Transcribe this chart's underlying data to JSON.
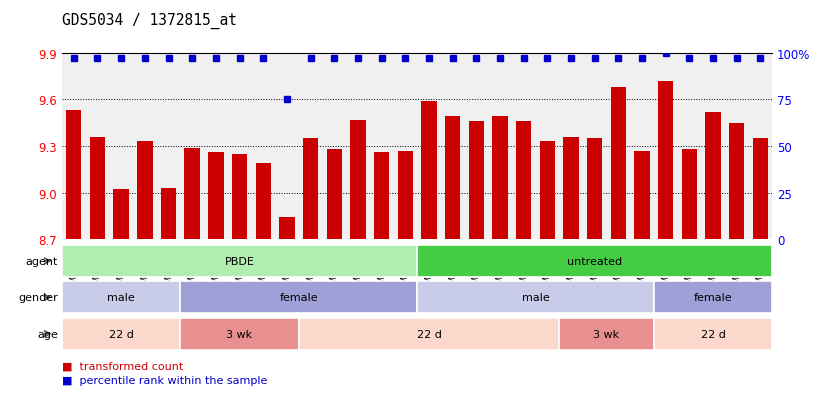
{
  "title": "GDS5034 / 1372815_at",
  "samples": [
    "GSM796783",
    "GSM796784",
    "GSM796785",
    "GSM796786",
    "GSM796787",
    "GSM796806",
    "GSM796807",
    "GSM796808",
    "GSM796809",
    "GSM796810",
    "GSM796796",
    "GSM796797",
    "GSM796798",
    "GSM796799",
    "GSM796800",
    "GSM796781",
    "GSM796788",
    "GSM796789",
    "GSM796790",
    "GSM796791",
    "GSM796801",
    "GSM796802",
    "GSM796803",
    "GSM796804",
    "GSM796805",
    "GSM796782",
    "GSM796792",
    "GSM796793",
    "GSM796794",
    "GSM796795"
  ],
  "bar_values": [
    9.53,
    9.36,
    9.02,
    9.33,
    9.03,
    9.29,
    9.26,
    9.25,
    9.19,
    8.84,
    9.35,
    9.28,
    9.47,
    9.26,
    9.27,
    9.59,
    9.49,
    9.46,
    9.49,
    9.46,
    9.33,
    9.36,
    9.35,
    9.68,
    9.27,
    9.72,
    9.28,
    9.52,
    9.45,
    9.35
  ],
  "percentile_values": [
    97,
    97,
    97,
    97,
    97,
    97,
    97,
    97,
    97,
    75,
    97,
    97,
    97,
    97,
    97,
    97,
    97,
    97,
    97,
    97,
    97,
    97,
    97,
    97,
    97,
    100,
    97,
    97,
    97,
    97
  ],
  "ylim": [
    8.7,
    9.9
  ],
  "yticks_left": [
    8.7,
    9.0,
    9.3,
    9.6,
    9.9
  ],
  "yticks_right": [
    0,
    25,
    50,
    75,
    100
  ],
  "bar_color": "#cc0000",
  "dot_color": "#0000cc",
  "background_color": "#ffffff",
  "plot_bg_color": "#f0f0f0",
  "agent_groups": [
    {
      "label": "PBDE",
      "start": 0,
      "end": 14,
      "color": "#b0eeb0"
    },
    {
      "label": "untreated",
      "start": 15,
      "end": 29,
      "color": "#44cc44"
    }
  ],
  "gender_groups": [
    {
      "label": "male",
      "start": 0,
      "end": 4,
      "color": "#c8cce8"
    },
    {
      "label": "female",
      "start": 5,
      "end": 14,
      "color": "#a0a0d8"
    },
    {
      "label": "male",
      "start": 15,
      "end": 24,
      "color": "#c8cce8"
    },
    {
      "label": "female",
      "start": 25,
      "end": 29,
      "color": "#a0a0d8"
    }
  ],
  "age_groups": [
    {
      "label": "22 d",
      "start": 0,
      "end": 4,
      "color": "#fcd8cc"
    },
    {
      "label": "3 wk",
      "start": 5,
      "end": 9,
      "color": "#e89090"
    },
    {
      "label": "22 d",
      "start": 10,
      "end": 20,
      "color": "#fcd8cc"
    },
    {
      "label": "3 wk",
      "start": 21,
      "end": 24,
      "color": "#e89090"
    },
    {
      "label": "22 d",
      "start": 25,
      "end": 29,
      "color": "#fcd8cc"
    }
  ],
  "legend_items": [
    {
      "color": "#cc0000",
      "label": "transformed count"
    },
    {
      "color": "#0000cc",
      "label": "percentile rank within the sample"
    }
  ]
}
